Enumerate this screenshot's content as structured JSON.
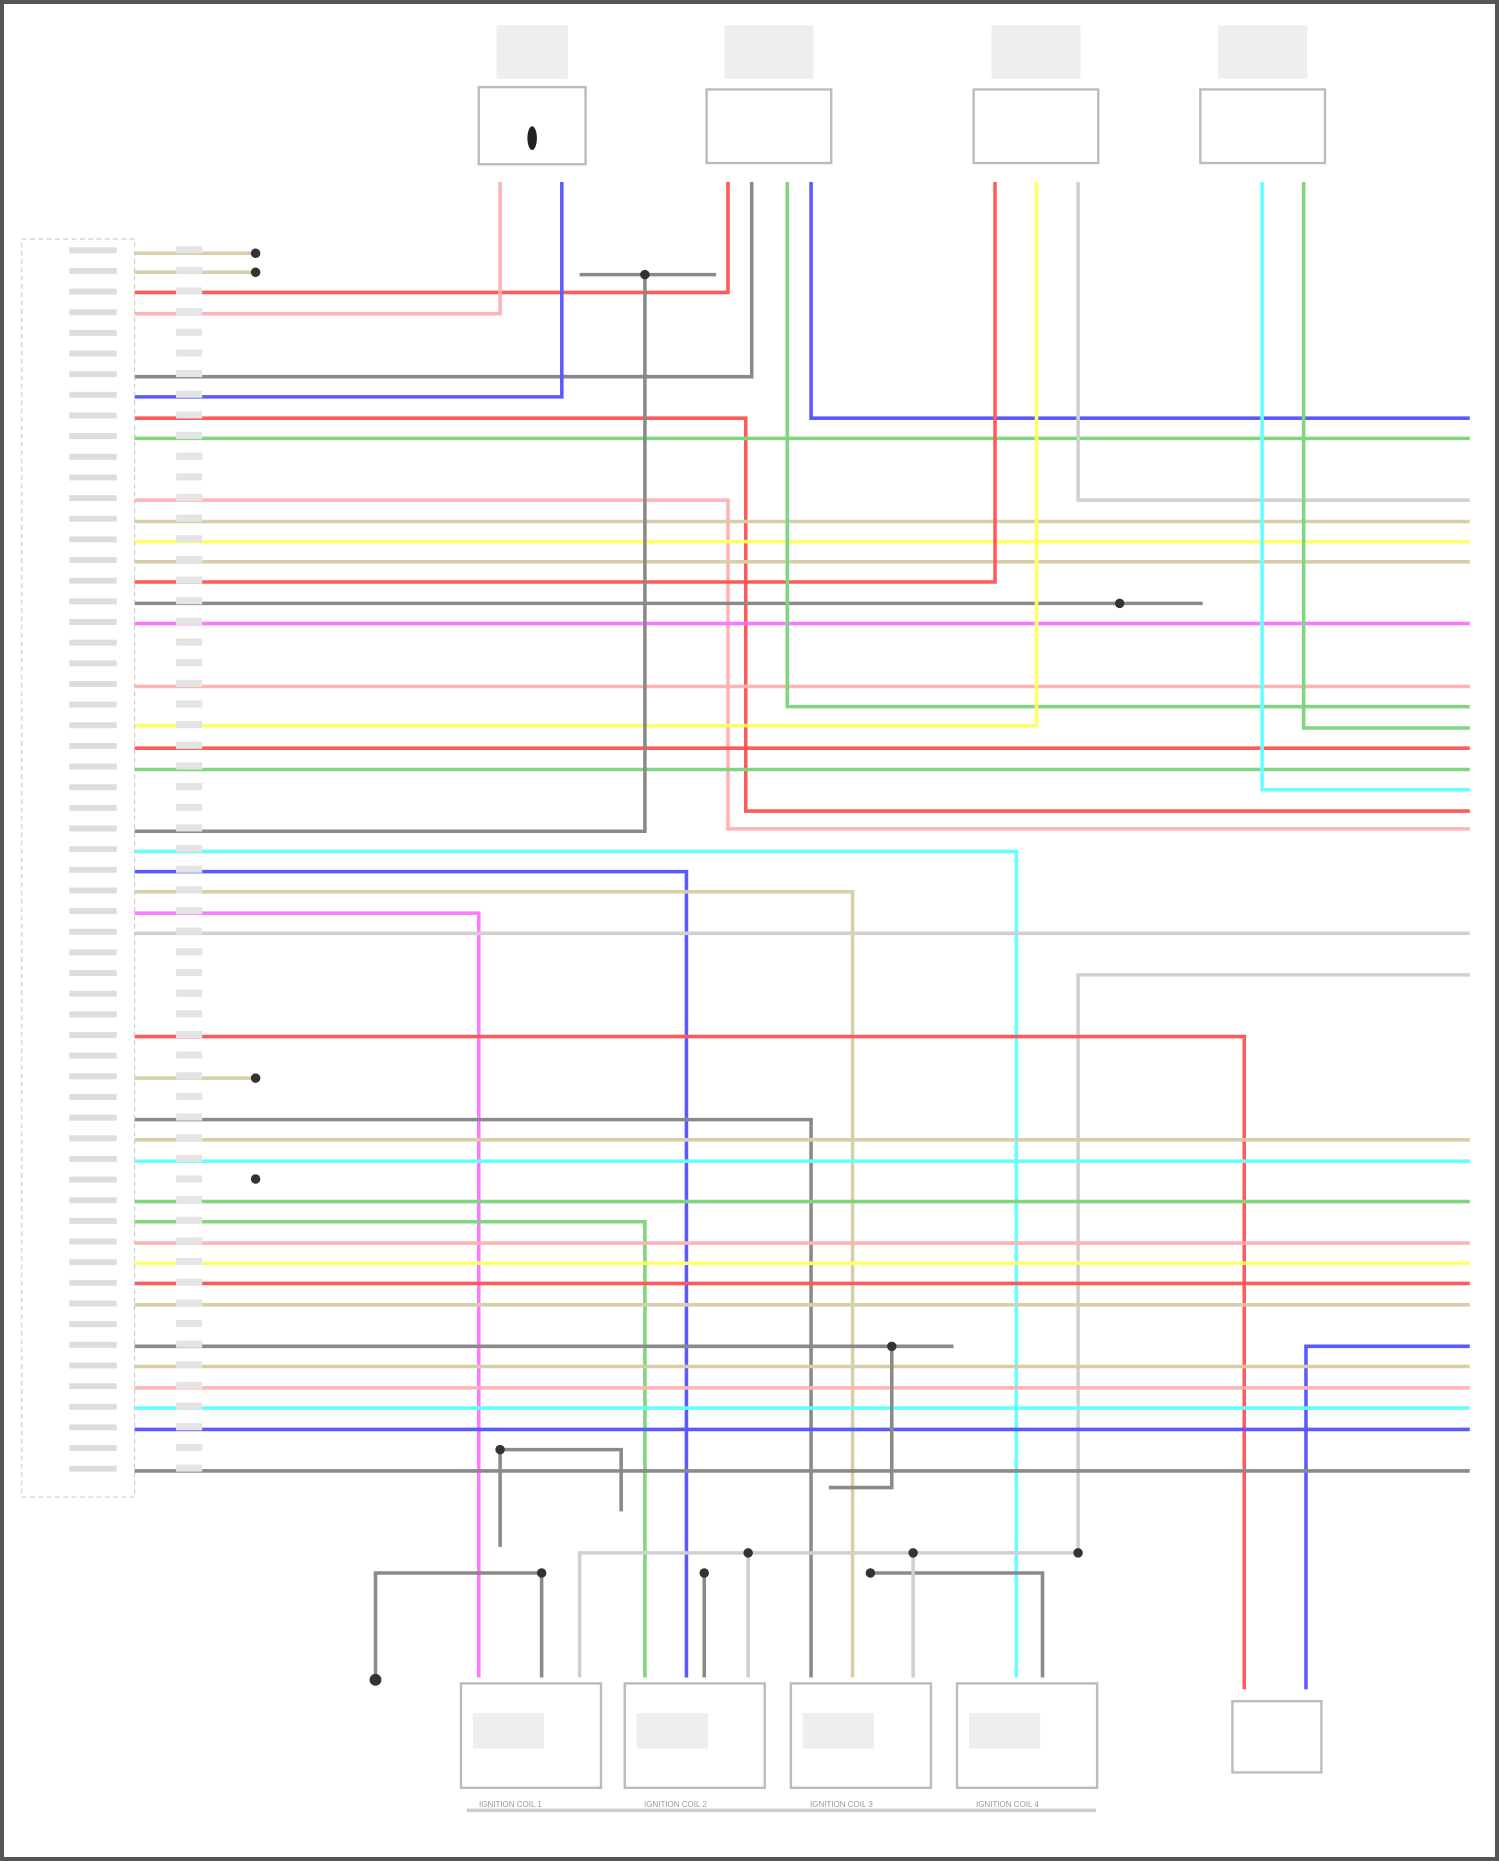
{
  "diagram": {
    "components": [
      {
        "id": "sensor-1"
      },
      {
        "id": "sensor-2"
      },
      {
        "id": "sensor-3"
      },
      {
        "id": "sensor-4"
      }
    ],
    "coils": [
      {
        "label": "IGNITION COIL 1"
      },
      {
        "label": "IGNITION COIL 2"
      },
      {
        "label": "IGNITION COIL 3"
      },
      {
        "label": "IGNITION COIL 4"
      }
    ],
    "wire_colors": {
      "red": "#ff5a5a",
      "pink": "#ffb3b3",
      "blue": "#5a5aff",
      "gray": "#8a8a8a",
      "green": "#7fd67f",
      "yellow": "#ffff66",
      "tan": "#d8cfa8",
      "magenta": "#ff77ff",
      "cyan": "#66ffff",
      "ltgray": "#d0d0d0"
    }
  }
}
